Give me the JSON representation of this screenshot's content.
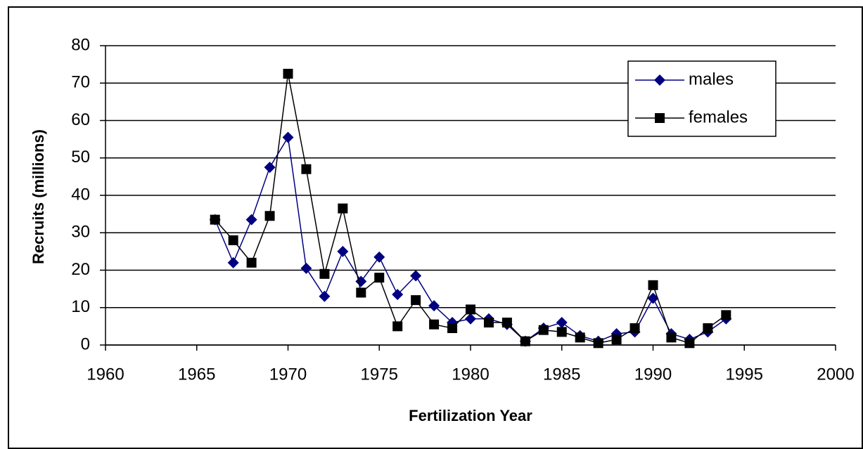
{
  "chart_data": {
    "type": "line",
    "xlabel": "Fertilization Year",
    "ylabel": "Recruits (millions)",
    "x": [
      1966,
      1967,
      1968,
      1969,
      1970,
      1971,
      1972,
      1973,
      1974,
      1975,
      1976,
      1977,
      1978,
      1979,
      1980,
      1981,
      1982,
      1983,
      1984,
      1985,
      1986,
      1987,
      1988,
      1989,
      1990,
      1991,
      1992,
      1993,
      1994
    ],
    "series": [
      {
        "name": "males",
        "color": "#000080",
        "marker": "diamond",
        "values": [
          33.5,
          22,
          33.5,
          47.5,
          55.5,
          20.5,
          13,
          25,
          17,
          23.5,
          13.5,
          18.5,
          10.5,
          6,
          7,
          7,
          5.5,
          1,
          4.5,
          6,
          2.5,
          1,
          3,
          3.5,
          12.5,
          3,
          1.5,
          3.5,
          7
        ]
      },
      {
        "name": "females",
        "color": "#000000",
        "marker": "square",
        "values": [
          33.5,
          28,
          22,
          34.5,
          72.5,
          47,
          19,
          36.5,
          14,
          18,
          5,
          12,
          5.5,
          4.5,
          9.5,
          6,
          6,
          1,
          4,
          3.5,
          2,
          0.5,
          1.5,
          4.5,
          16,
          2,
          0.5,
          4.5,
          8
        ]
      }
    ],
    "xlim": [
      1960,
      2000
    ],
    "xticks": [
      1960,
      1965,
      1970,
      1975,
      1980,
      1985,
      1990,
      1995,
      2000
    ],
    "ylim": [
      0,
      80
    ],
    "yticks": [
      0,
      10,
      20,
      30,
      40,
      50,
      60,
      70,
      80
    ],
    "grid": true,
    "legend": "upper right"
  }
}
